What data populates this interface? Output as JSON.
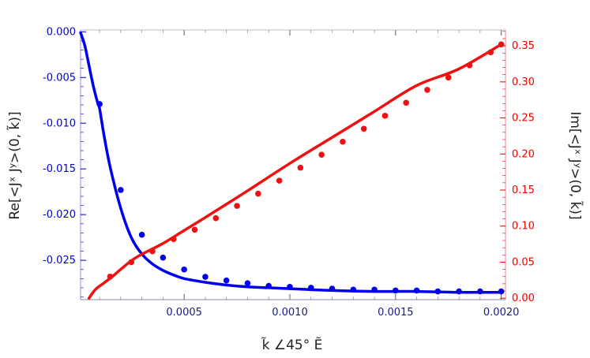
{
  "chart_data": {
    "type": "line",
    "xlabel": "k̃  ∠45°  Ẽ",
    "ylabel_left": "Re[<Jˣ Jʸ>(0, k̃)]",
    "ylabel_right": "Im[<Jˣ Jʸ>(0, k̃)]",
    "xlim": [
      1e-05,
      0.00202
    ],
    "ylim_left": [
      -0.0293,
      0.0002
    ],
    "ylim_right": [
      -0.002,
      0.372
    ],
    "x_ticks": [
      0.0005,
      0.001,
      0.0015,
      0.002
    ],
    "x_tick_labels": [
      "0.0005",
      "0.0010",
      "0.0015",
      "0.0020"
    ],
    "y_left_ticks": [
      0.0,
      -0.005,
      -0.01,
      -0.015,
      -0.02,
      -0.025
    ],
    "y_left_tick_labels": [
      "0.000",
      "-0.005",
      "-0.010",
      "-0.015",
      "-0.020",
      "-0.025"
    ],
    "y_right_ticks": [
      0.0,
      0.05,
      0.1,
      0.15,
      0.2,
      0.25,
      0.3,
      0.35
    ],
    "y_right_tick_labels": [
      "0.00",
      "0.05",
      "0.10",
      "0.15",
      "0.20",
      "0.25",
      "0.30",
      "0.35"
    ],
    "colors": {
      "left_axis": "#0000dd",
      "right_axis": "#ee0000",
      "real": "#0000ee",
      "imag": "#ee1111"
    },
    "series": [
      {
        "axis": "left",
        "color": "#0000ee",
        "curve_x": [
          1e-05,
          3e-05,
          5e-05,
          7e-05,
          9e-05,
          0.0001,
          0.00012,
          0.00015,
          0.0002,
          0.00025,
          0.0003,
          0.00035,
          0.0004,
          0.00045,
          0.0005,
          0.0006,
          0.0007,
          0.0008,
          0.0009,
          0.001,
          0.0012,
          0.0014,
          0.0016,
          0.0018,
          0.002
        ],
        "curve_y": [
          -0.0001,
          -0.0015,
          -0.0037,
          -0.0059,
          -0.0077,
          -0.0084,
          -0.0112,
          -0.0148,
          -0.0193,
          -0.0225,
          -0.0243,
          -0.0254,
          -0.0261,
          -0.0266,
          -0.027,
          -0.0274,
          -0.0277,
          -0.0279,
          -0.028,
          -0.0281,
          -0.0283,
          -0.0284,
          -0.0284,
          -0.0285,
          -0.0285
        ],
        "points_x": [
          0.0001,
          0.0002,
          0.0003,
          0.0004,
          0.0005,
          0.0006,
          0.0007,
          0.0008,
          0.0009,
          0.001,
          0.0011,
          0.0012,
          0.0013,
          0.0014,
          0.0015,
          0.0016,
          0.0017,
          0.0018,
          0.0019,
          0.002
        ],
        "points_y": [
          -0.0079,
          -0.0173,
          -0.0222,
          -0.0247,
          -0.026,
          -0.0268,
          -0.0272,
          -0.0275,
          -0.0278,
          -0.0279,
          -0.028,
          -0.0281,
          -0.0282,
          -0.0282,
          -0.0283,
          -0.0283,
          -0.0284,
          -0.0284,
          -0.0284,
          -0.0284
        ]
      },
      {
        "axis": "right",
        "color": "#ee1111",
        "curve_x": [
          5e-05,
          8e-05,
          0.00012,
          0.00016,
          0.0002,
          0.00025,
          0.0003,
          0.0004,
          0.0005,
          0.0006,
          0.0008,
          0.001,
          0.0012,
          0.0014,
          0.0016,
          0.0018,
          0.002
        ],
        "curve_y": [
          0.0,
          0.012,
          0.021,
          0.03,
          0.04,
          0.052,
          0.061,
          0.076,
          0.094,
          0.112,
          0.149,
          0.187,
          0.223,
          0.259,
          0.295,
          0.318,
          0.352
        ],
        "points_x": [
          0.00015,
          0.00025,
          0.00035,
          0.00045,
          0.00055,
          0.00065,
          0.00075,
          0.00085,
          0.00095,
          0.00105,
          0.00115,
          0.00125,
          0.00135,
          0.00145,
          0.00155,
          0.00165,
          0.00175,
          0.00185,
          0.00195,
          0.002
        ],
        "points_y": [
          0.03,
          0.05,
          0.065,
          0.082,
          0.095,
          0.111,
          0.128,
          0.145,
          0.163,
          0.181,
          0.199,
          0.217,
          0.235,
          0.253,
          0.271,
          0.289,
          0.306,
          0.323,
          0.341,
          0.352
        ]
      }
    ]
  }
}
